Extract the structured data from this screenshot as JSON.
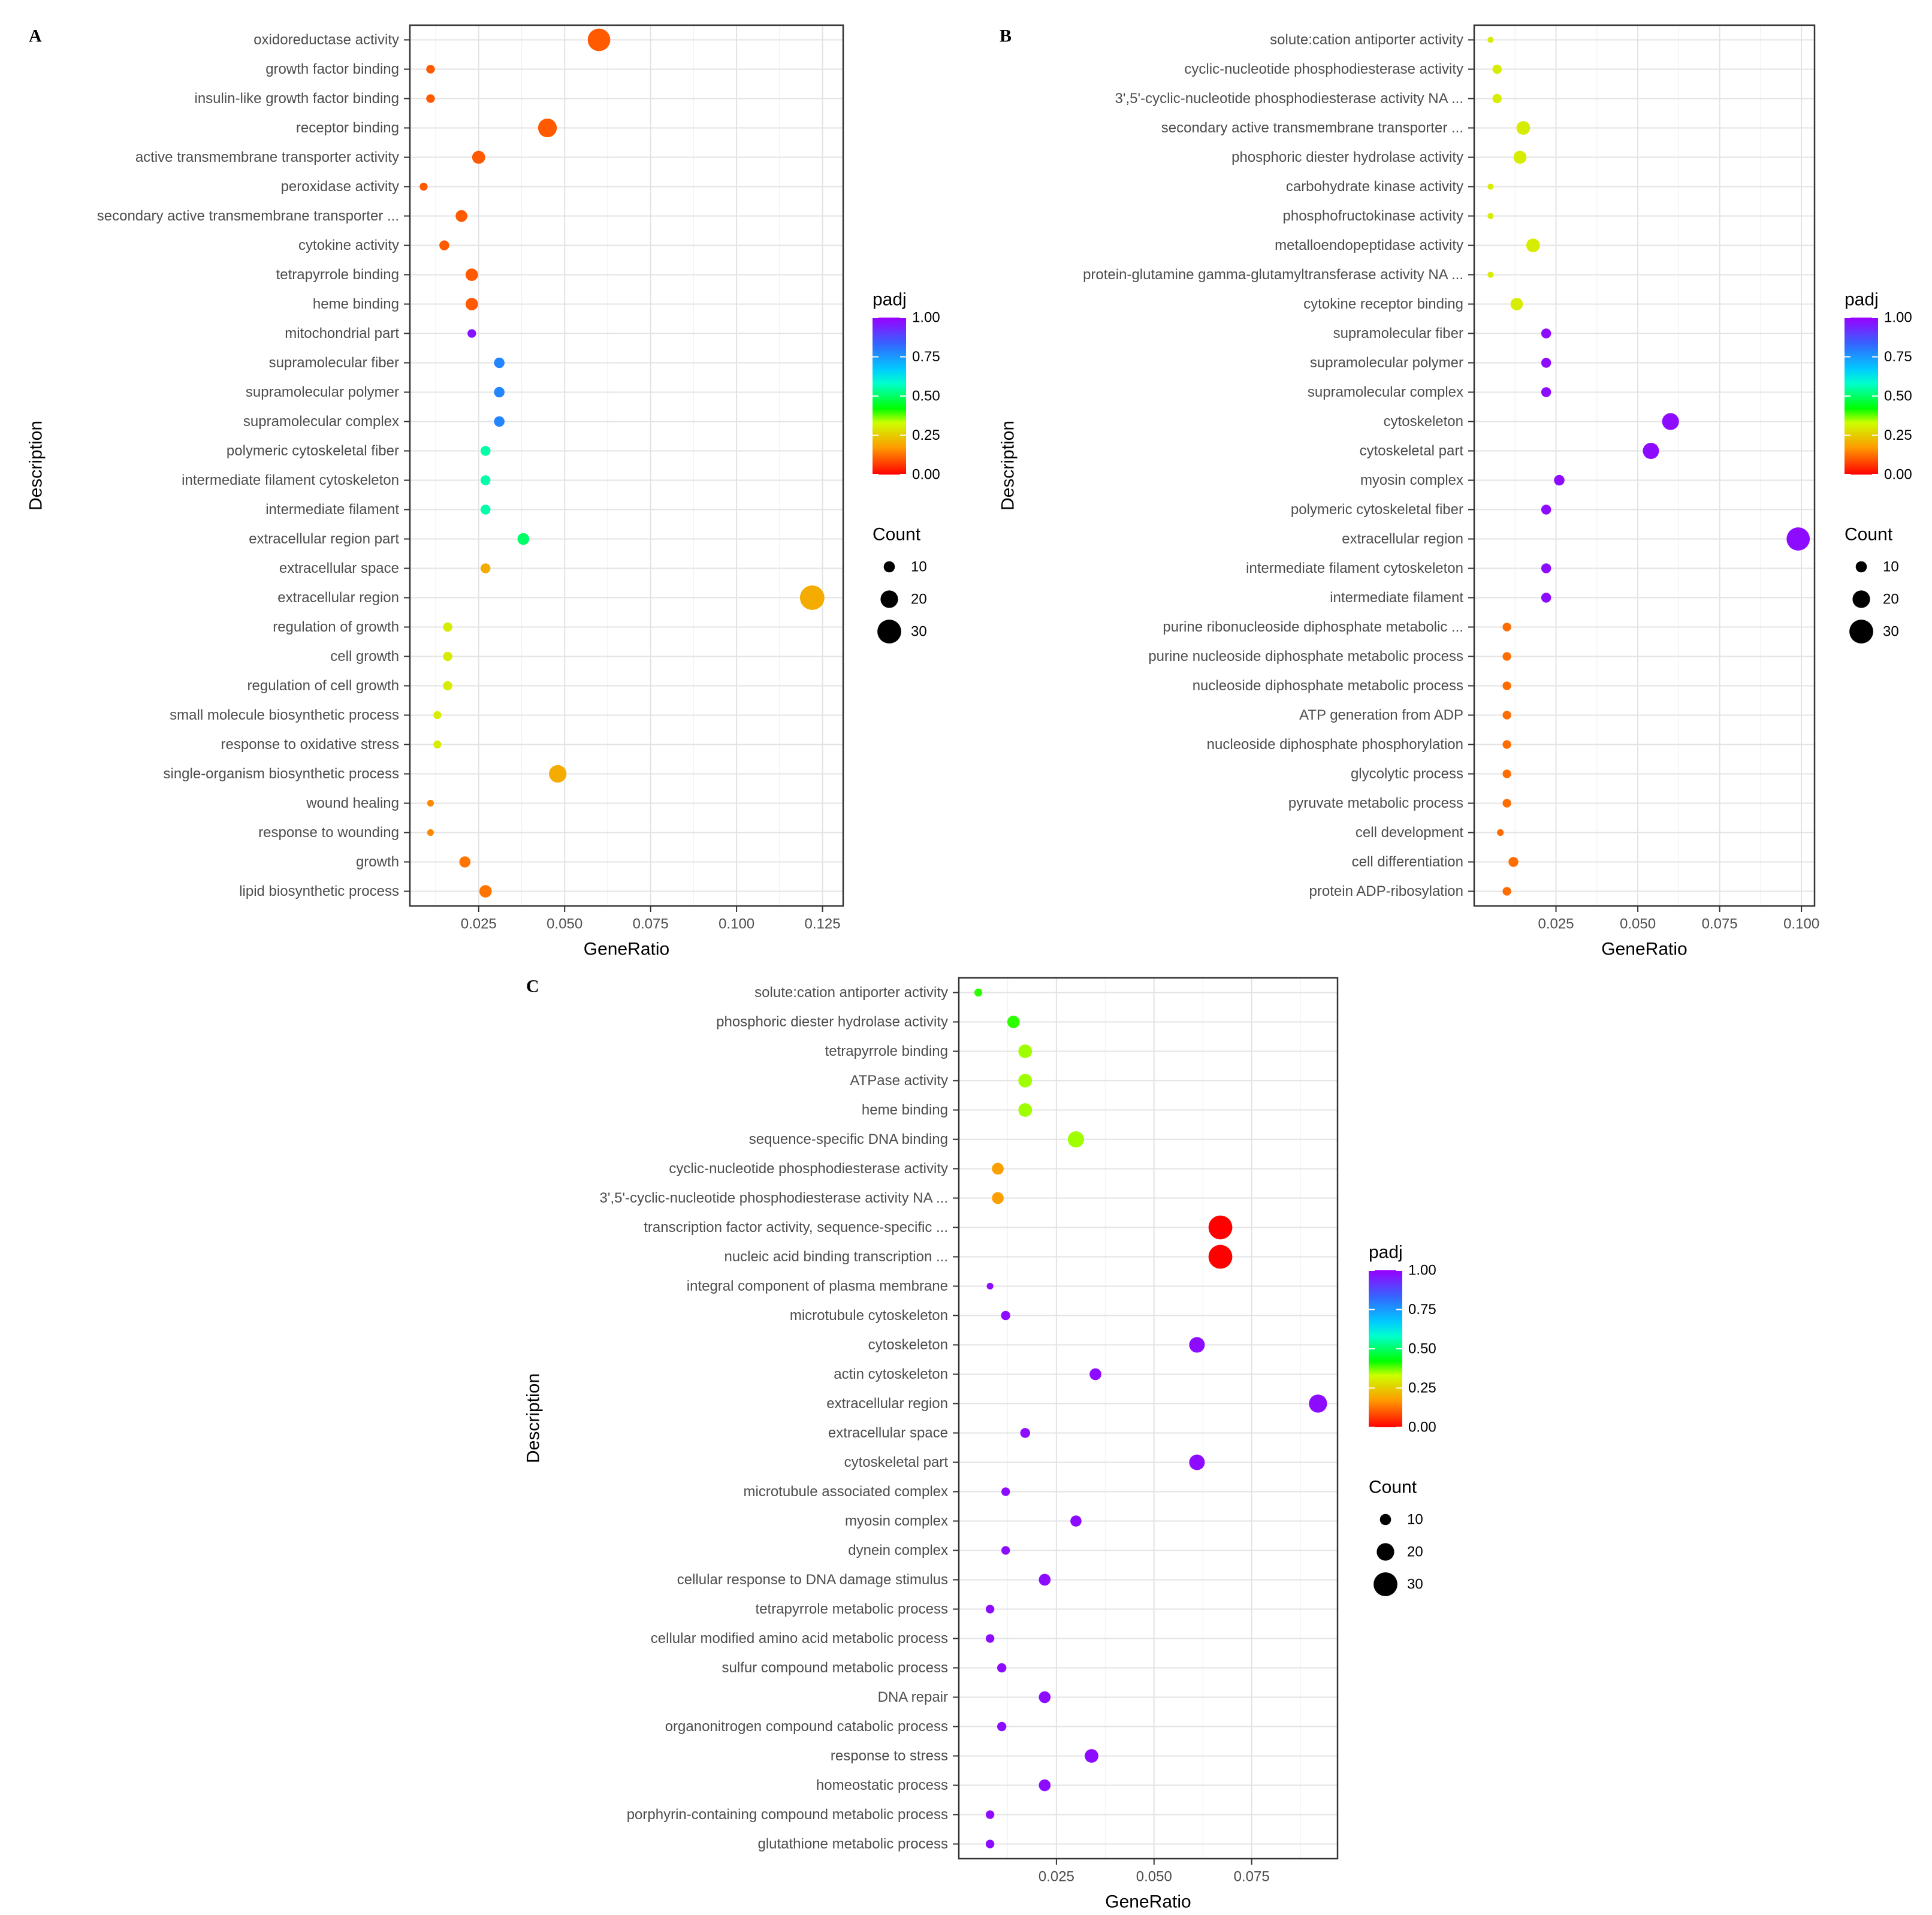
{
  "legend": {
    "color_title": "padj",
    "size_title": "Count",
    "color_ticks": [
      "1.00",
      "0.75",
      "0.50",
      "0.25",
      "0.00"
    ],
    "size_ticks": [
      "10",
      "20",
      "30"
    ]
  },
  "chart_data": [
    {
      "panel": "A",
      "type": "scatter",
      "xlabel": "GeneRatio",
      "ylabel": "Description",
      "xticks": [
        "0.025",
        "0.050",
        "0.075",
        "0.100",
        "0.125"
      ],
      "xlim": [
        0.005,
        0.131
      ],
      "size_legend": [
        10,
        20,
        30
      ],
      "color_legend_range": [
        0,
        1
      ],
      "points": [
        {
          "label": "oxidoreductase activity",
          "x": 0.06,
          "count": 28,
          "padj": 0.1
        },
        {
          "label": "growth factor binding",
          "x": 0.011,
          "count": 6,
          "padj": 0.1
        },
        {
          "label": "insulin-like growth factor binding",
          "x": 0.011,
          "count": 6,
          "padj": 0.1
        },
        {
          "label": "receptor binding",
          "x": 0.045,
          "count": 22,
          "padj": 0.1
        },
        {
          "label": "active transmembrane transporter activity",
          "x": 0.025,
          "count": 13,
          "padj": 0.1
        },
        {
          "label": "peroxidase activity",
          "x": 0.009,
          "count": 5,
          "padj": 0.1
        },
        {
          "label": "secondary active transmembrane transporter ...",
          "x": 0.02,
          "count": 11,
          "padj": 0.1
        },
        {
          "label": "cytokine activity",
          "x": 0.015,
          "count": 8,
          "padj": 0.1
        },
        {
          "label": "tetrapyrrole binding",
          "x": 0.023,
          "count": 12,
          "padj": 0.1
        },
        {
          "label": "heme binding",
          "x": 0.023,
          "count": 12,
          "padj": 0.1
        },
        {
          "label": "mitochondrial part",
          "x": 0.023,
          "count": 6,
          "padj": 0.97
        },
        {
          "label": "supramolecular fiber",
          "x": 0.031,
          "count": 9,
          "padj": 0.78
        },
        {
          "label": "supramolecular polymer",
          "x": 0.031,
          "count": 9,
          "padj": 0.78
        },
        {
          "label": "supramolecular complex",
          "x": 0.031,
          "count": 9,
          "padj": 0.78
        },
        {
          "label": "polymeric cytoskeletal fiber",
          "x": 0.027,
          "count": 8,
          "padj": 0.55
        },
        {
          "label": "intermediate filament cytoskeleton",
          "x": 0.027,
          "count": 8,
          "padj": 0.55
        },
        {
          "label": "intermediate filament",
          "x": 0.027,
          "count": 8,
          "padj": 0.55
        },
        {
          "label": "extracellular region part",
          "x": 0.038,
          "count": 11,
          "padj": 0.5
        },
        {
          "label": "extracellular space",
          "x": 0.027,
          "count": 8,
          "padj": 0.2
        },
        {
          "label": "extracellular region",
          "x": 0.122,
          "count": 31,
          "padj": 0.2
        },
        {
          "label": "regulation of growth",
          "x": 0.016,
          "count": 7,
          "padj": 0.3
        },
        {
          "label": "cell growth",
          "x": 0.016,
          "count": 7,
          "padj": 0.3
        },
        {
          "label": "regulation of cell growth",
          "x": 0.016,
          "count": 7,
          "padj": 0.3
        },
        {
          "label": "small molecule biosynthetic process",
          "x": 0.013,
          "count": 5,
          "padj": 0.3
        },
        {
          "label": "response to oxidative stress",
          "x": 0.013,
          "count": 5,
          "padj": 0.3
        },
        {
          "label": "single-organism biosynthetic process",
          "x": 0.048,
          "count": 20,
          "padj": 0.2
        },
        {
          "label": "wound healing",
          "x": 0.011,
          "count": 3,
          "padj": 0.15
        },
        {
          "label": "response to wounding",
          "x": 0.011,
          "count": 3,
          "padj": 0.15
        },
        {
          "label": "growth",
          "x": 0.021,
          "count": 10,
          "padj": 0.13
        },
        {
          "label": "lipid biosynthetic process",
          "x": 0.027,
          "count": 12,
          "padj": 0.13
        }
      ]
    },
    {
      "panel": "B",
      "type": "scatter",
      "xlabel": "GeneRatio",
      "ylabel": "Description",
      "xticks": [
        "0.025",
        "0.050",
        "0.075",
        "0.100"
      ],
      "xlim": [
        0.0,
        0.104
      ],
      "size_legend": [
        10,
        20,
        30
      ],
      "color_legend_range": [
        0,
        1
      ],
      "points": [
        {
          "label": "solute:cation antiporter activity",
          "x": 0.005,
          "count": 2,
          "padj": 0.3
        },
        {
          "label": "cyclic-nucleotide phosphodiesterase activity",
          "x": 0.007,
          "count": 7,
          "padj": 0.3
        },
        {
          "label": "3',5'-cyclic-nucleotide phosphodiesterase activity NA ...",
          "x": 0.007,
          "count": 7,
          "padj": 0.3
        },
        {
          "label": "secondary active transmembrane transporter ...",
          "x": 0.015,
          "count": 14,
          "padj": 0.3
        },
        {
          "label": "phosphoric diester hydrolase activity",
          "x": 0.014,
          "count": 13,
          "padj": 0.3
        },
        {
          "label": "carbohydrate kinase activity",
          "x": 0.005,
          "count": 2,
          "padj": 0.3
        },
        {
          "label": "phosphofructokinase activity",
          "x": 0.005,
          "count": 2,
          "padj": 0.3
        },
        {
          "label": "metalloendopeptidase activity",
          "x": 0.018,
          "count": 14,
          "padj": 0.3
        },
        {
          "label": "protein-glutamine gamma-glutamyltransferase activity NA ...",
          "x": 0.005,
          "count": 2,
          "padj": 0.3
        },
        {
          "label": "cytokine receptor binding",
          "x": 0.013,
          "count": 12,
          "padj": 0.3
        },
        {
          "label": "supramolecular fiber",
          "x": 0.022,
          "count": 8,
          "padj": 0.98
        },
        {
          "label": "supramolecular polymer",
          "x": 0.022,
          "count": 8,
          "padj": 0.98
        },
        {
          "label": "supramolecular complex",
          "x": 0.022,
          "count": 8,
          "padj": 0.98
        },
        {
          "label": "cytoskeleton",
          "x": 0.06,
          "count": 19,
          "padj": 0.98
        },
        {
          "label": "cytoskeletal part",
          "x": 0.054,
          "count": 18,
          "padj": 0.98
        },
        {
          "label": "myosin complex",
          "x": 0.026,
          "count": 9,
          "padj": 0.98
        },
        {
          "label": "polymeric cytoskeletal fiber",
          "x": 0.022,
          "count": 8,
          "padj": 0.98
        },
        {
          "label": "extracellular region",
          "x": 0.099,
          "count": 29,
          "padj": 0.98
        },
        {
          "label": "intermediate filament cytoskeleton",
          "x": 0.022,
          "count": 8,
          "padj": 0.98
        },
        {
          "label": "intermediate filament",
          "x": 0.022,
          "count": 8,
          "padj": 0.98
        },
        {
          "label": "purine ribonucleoside diphosphate metabolic ...",
          "x": 0.01,
          "count": 6,
          "padj": 0.12
        },
        {
          "label": "purine nucleoside diphosphate metabolic process",
          "x": 0.01,
          "count": 6,
          "padj": 0.12
        },
        {
          "label": "nucleoside diphosphate metabolic process",
          "x": 0.01,
          "count": 6,
          "padj": 0.12
        },
        {
          "label": "ATP generation from ADP",
          "x": 0.01,
          "count": 6,
          "padj": 0.12
        },
        {
          "label": "nucleoside diphosphate phosphorylation",
          "x": 0.01,
          "count": 6,
          "padj": 0.12
        },
        {
          "label": "glycolytic process",
          "x": 0.01,
          "count": 6,
          "padj": 0.12
        },
        {
          "label": "pyruvate metabolic process",
          "x": 0.01,
          "count": 6,
          "padj": 0.12
        },
        {
          "label": "cell development",
          "x": 0.008,
          "count": 3,
          "padj": 0.12
        },
        {
          "label": "cell differentiation",
          "x": 0.012,
          "count": 8,
          "padj": 0.12
        },
        {
          "label": "protein ADP-ribosylation",
          "x": 0.01,
          "count": 6,
          "padj": 0.12
        }
      ]
    },
    {
      "panel": "C",
      "type": "scatter",
      "xlabel": "GeneRatio",
      "ylabel": "Description",
      "xticks": [
        "0.025",
        "0.050",
        "0.075"
      ],
      "xlim": [
        0.0,
        0.097
      ],
      "size_legend": [
        10,
        20,
        30
      ],
      "color_legend_range": [
        0,
        1
      ],
      "points": [
        {
          "label": "solute:cation antiporter activity",
          "x": 0.005,
          "count": 5,
          "padj": 0.4
        },
        {
          "label": "phosphoric diester hydrolase activity",
          "x": 0.014,
          "count": 12,
          "padj": 0.4
        },
        {
          "label": "tetrapyrrole binding",
          "x": 0.017,
          "count": 14,
          "padj": 0.35
        },
        {
          "label": "ATPase activity",
          "x": 0.017,
          "count": 14,
          "padj": 0.35
        },
        {
          "label": "heme binding",
          "x": 0.017,
          "count": 14,
          "padj": 0.35
        },
        {
          "label": "sequence-specific DNA binding",
          "x": 0.03,
          "count": 18,
          "padj": 0.35
        },
        {
          "label": "cyclic-nucleotide phosphodiesterase activity",
          "x": 0.01,
          "count": 11,
          "padj": 0.18
        },
        {
          "label": "3',5'-cyclic-nucleotide phosphodiesterase activity NA ...",
          "x": 0.01,
          "count": 11,
          "padj": 0.18
        },
        {
          "label": "transcription factor activity, sequence-specific ...",
          "x": 0.067,
          "count": 30,
          "padj": 0.0
        },
        {
          "label": "nucleic acid binding transcription ...",
          "x": 0.067,
          "count": 30,
          "padj": 0.0
        },
        {
          "label": "integral component of plasma membrane",
          "x": 0.008,
          "count": 3,
          "padj": 0.98
        },
        {
          "label": "microtubule cytoskeleton",
          "x": 0.012,
          "count": 7,
          "padj": 0.98
        },
        {
          "label": "cytoskeleton",
          "x": 0.061,
          "count": 17,
          "padj": 0.98
        },
        {
          "label": "actin cytoskeleton",
          "x": 0.035,
          "count": 11,
          "padj": 0.98
        },
        {
          "label": "extracellular region",
          "x": 0.092,
          "count": 21,
          "padj": 0.98
        },
        {
          "label": "extracellular space",
          "x": 0.017,
          "count": 8,
          "padj": 0.98
        },
        {
          "label": "cytoskeletal part",
          "x": 0.061,
          "count": 17,
          "padj": 0.98
        },
        {
          "label": "microtubule associated complex",
          "x": 0.012,
          "count": 6,
          "padj": 0.98
        },
        {
          "label": "myosin complex",
          "x": 0.03,
          "count": 10,
          "padj": 0.98
        },
        {
          "label": "dynein complex",
          "x": 0.012,
          "count": 6,
          "padj": 0.98
        },
        {
          "label": "cellular response to DNA damage stimulus",
          "x": 0.022,
          "count": 11,
          "padj": 0.98
        },
        {
          "label": "tetrapyrrole metabolic process",
          "x": 0.008,
          "count": 6,
          "padj": 0.98
        },
        {
          "label": "cellular modified amino acid metabolic process",
          "x": 0.008,
          "count": 6,
          "padj": 0.98
        },
        {
          "label": "sulfur compound metabolic process",
          "x": 0.011,
          "count": 7,
          "padj": 0.98
        },
        {
          "label": "DNA repair",
          "x": 0.022,
          "count": 11,
          "padj": 0.98
        },
        {
          "label": "organonitrogen compound catabolic process",
          "x": 0.011,
          "count": 7,
          "padj": 0.98
        },
        {
          "label": "response to stress",
          "x": 0.034,
          "count": 14,
          "padj": 0.98
        },
        {
          "label": "homeostatic process",
          "x": 0.022,
          "count": 11,
          "padj": 0.98
        },
        {
          "label": "porphyrin-containing compound metabolic process",
          "x": 0.008,
          "count": 6,
          "padj": 0.98
        },
        {
          "label": "glutathione metabolic process",
          "x": 0.008,
          "count": 6,
          "padj": 0.98
        }
      ]
    }
  ]
}
